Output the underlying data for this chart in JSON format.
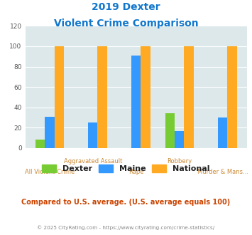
{
  "title_line1": "2019 Dexter",
  "title_line2": "Violent Crime Comparison",
  "categories_top": [
    "",
    "Aggravated Assault",
    "",
    "Robbery",
    ""
  ],
  "categories_bottom": [
    "All Violent Crime",
    "",
    "Rape",
    "",
    "Murder & Mans..."
  ],
  "dexter": [
    8,
    0,
    0,
    34,
    0
  ],
  "maine": [
    31,
    25,
    91,
    17,
    30
  ],
  "national": [
    100,
    100,
    100,
    100,
    100
  ],
  "color_dexter": "#77cc33",
  "color_maine": "#3399ff",
  "color_national": "#ffaa22",
  "ylim": [
    0,
    120
  ],
  "yticks": [
    0,
    20,
    40,
    60,
    80,
    100,
    120
  ],
  "background_color": "#dde8ea",
  "title_color": "#1177cc",
  "xlabel_color": "#cc8833",
  "legend_labels": [
    "Dexter",
    "Maine",
    "National"
  ],
  "note": "Compared to U.S. average. (U.S. average equals 100)",
  "footer": "© 2025 CityRating.com - https://www.cityrating.com/crime-statistics/",
  "note_color": "#cc4400",
  "footer_color": "#888888",
  "bar_width": 0.22
}
